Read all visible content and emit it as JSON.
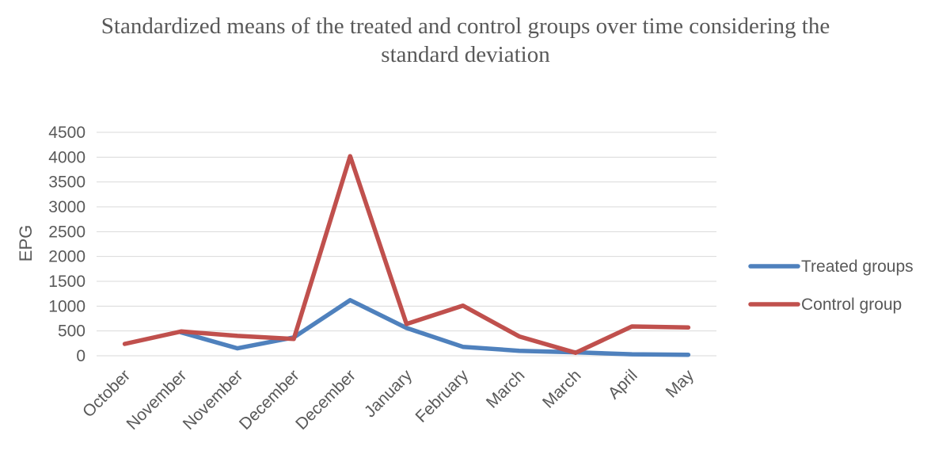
{
  "chart_data": {
    "type": "line",
    "title_line1": "Standardized means of the treated and control groups over time considering the",
    "title_line2": "standard deviation",
    "xlabel": "",
    "ylabel": "EPG",
    "ylim": [
      0,
      4500
    ],
    "yticks": [
      0,
      500,
      1000,
      1500,
      2000,
      2500,
      3000,
      3500,
      4000,
      4500
    ],
    "categories": [
      "October",
      "November",
      "November",
      "December",
      "December",
      "January",
      "February",
      "March",
      "March",
      "April",
      "May"
    ],
    "grid": true,
    "legend_position": "right",
    "series": [
      {
        "name": "Treated groups",
        "color": "#4f81bd",
        "values": [
          null,
          470,
          150,
          370,
          1120,
          560,
          180,
          100,
          70,
          30,
          20
        ]
      },
      {
        "name": "Control group",
        "color": "#c0504d",
        "values": [
          240,
          490,
          400,
          340,
          4020,
          640,
          1010,
          390,
          60,
          590,
          570
        ]
      }
    ]
  }
}
